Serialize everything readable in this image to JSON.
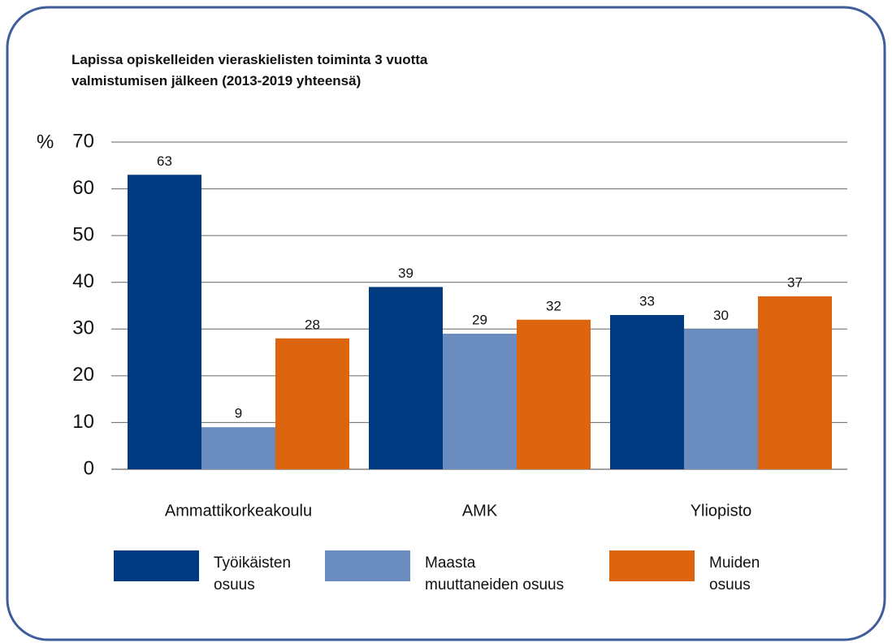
{
  "chart_data": {
    "type": "bar",
    "title": "Lapissa opiskelleiden vieraskielisten toiminta 3 vuotta\nvalmistumisen jälkeen (2013-2019 yhteensä)",
    "y_label": "%",
    "categories": [
      "Ammattikorkeakoulu",
      "AMK",
      "Yliopisto"
    ],
    "series": [
      {
        "name": "Työikäisten\nosuus",
        "color": "#003a80",
        "values": [
          63,
          39,
          33
        ]
      },
      {
        "name": "Maasta\nmuuttaneiden osuus",
        "color": "#6b8cbf",
        "values": [
          9,
          29,
          30
        ]
      },
      {
        "name": "Muiden\nosuus",
        "color": "#dd650f",
        "values": [
          28,
          32,
          37
        ]
      }
    ],
    "ylim": [
      0,
      70
    ],
    "yticks": [
      0,
      10,
      20,
      30,
      40,
      50,
      60,
      70
    ],
    "grid": true,
    "legend": "bottom"
  }
}
